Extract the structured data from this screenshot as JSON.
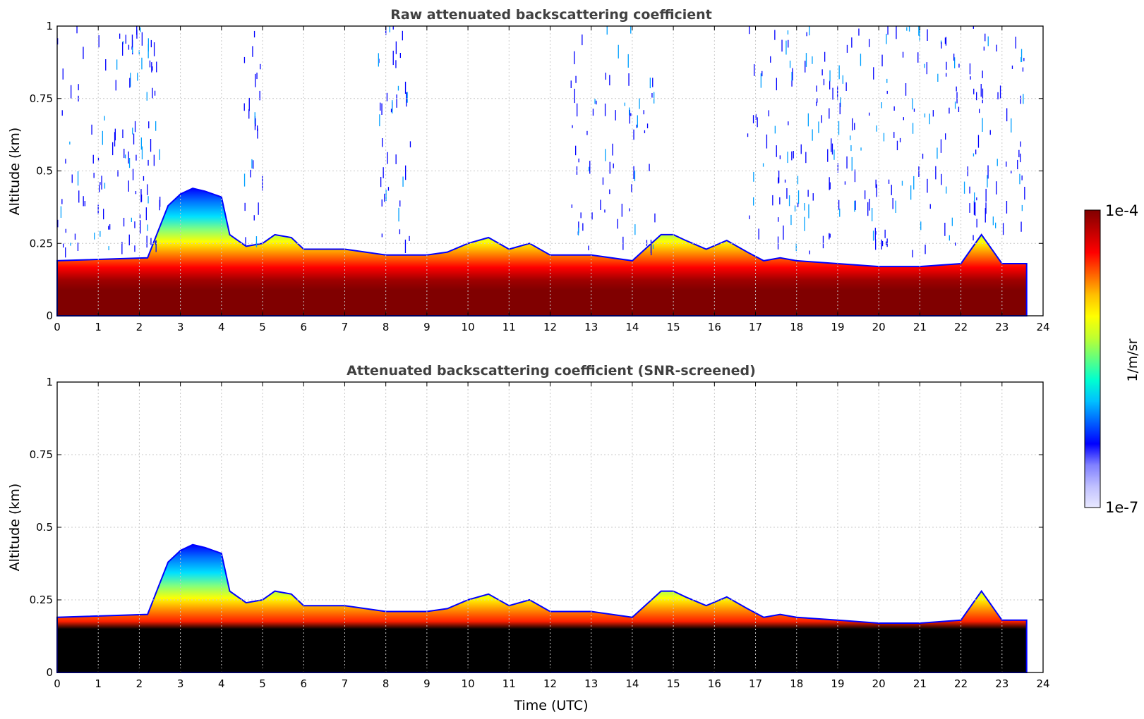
{
  "chart_data": [
    {
      "type": "heatmap",
      "title": "Raw attenuated backscattering coefficient",
      "xlabel": "",
      "ylabel": "Altitude (km)",
      "xlim": [
        0,
        24
      ],
      "ylim": [
        0,
        1
      ],
      "xticks": [
        "0",
        "1",
        "2",
        "3",
        "4",
        "5",
        "6",
        "7",
        "8",
        "9",
        "10",
        "11",
        "12",
        "13",
        "14",
        "15",
        "16",
        "17",
        "18",
        "19",
        "20",
        "21",
        "22",
        "23",
        "24"
      ],
      "yticks": [
        "0",
        "0.25",
        "0.5",
        "0.75",
        "1"
      ],
      "grid": true,
      "data_end_time": 23.6,
      "boundary_layer_top_km": {
        "time": [
          0,
          2.2,
          2.7,
          3.0,
          3.3,
          3.6,
          4.0,
          4.2,
          4.6,
          5.0,
          5.3,
          5.7,
          6.0,
          7.0,
          8.0,
          9.0,
          9.5,
          10.0,
          10.5,
          11.0,
          11.5,
          12.0,
          13.0,
          14.0,
          14.7,
          15.0,
          15.3,
          15.8,
          16.3,
          16.8,
          17.2,
          17.6,
          18.0,
          19.0,
          20.0,
          21.0,
          22.0,
          22.5,
          22.8,
          23.0,
          23.6
        ],
        "altitude": [
          0.19,
          0.2,
          0.38,
          0.42,
          0.44,
          0.43,
          0.41,
          0.28,
          0.24,
          0.25,
          0.28,
          0.27,
          0.23,
          0.23,
          0.21,
          0.21,
          0.22,
          0.25,
          0.27,
          0.23,
          0.25,
          0.21,
          0.21,
          0.19,
          0.28,
          0.28,
          0.26,
          0.23,
          0.26,
          0.22,
          0.19,
          0.2,
          0.19,
          0.18,
          0.17,
          0.17,
          0.18,
          0.28,
          0.22,
          0.18,
          0.18
        ]
      },
      "colorscale": "jet (log)"
    },
    {
      "type": "heatmap",
      "title": "Attenuated backscattering coefficient (SNR-screened)",
      "xlabel": "Time (UTC)",
      "ylabel": "Altitude (km)",
      "xlim": [
        0,
        24
      ],
      "ylim": [
        0,
        1
      ],
      "xticks": [
        "0",
        "1",
        "2",
        "3",
        "4",
        "5",
        "6",
        "7",
        "8",
        "9",
        "10",
        "11",
        "12",
        "13",
        "14",
        "15",
        "16",
        "17",
        "18",
        "19",
        "20",
        "21",
        "22",
        "23",
        "24"
      ],
      "yticks": [
        "0",
        "0.25",
        "0.5",
        "0.75",
        "1"
      ],
      "grid": true,
      "data_end_time": 23.6,
      "colorscale": "jet (log), saturated values screened to black"
    }
  ],
  "colorbar": {
    "max_label": "1e-4",
    "min_label": "1e-7",
    "unit_label": "1/m/sr",
    "range": [
      1e-07,
      0.0001
    ],
    "colors": [
      "#e8e8ff",
      "#c0c0ff",
      "#8080ff",
      "#0000ff",
      "#0060ff",
      "#00c0ff",
      "#00ffd0",
      "#60ff80",
      "#c0ff30",
      "#ffff00",
      "#ffc000",
      "#ff6000",
      "#ff0000",
      "#c00000",
      "#800000"
    ]
  }
}
